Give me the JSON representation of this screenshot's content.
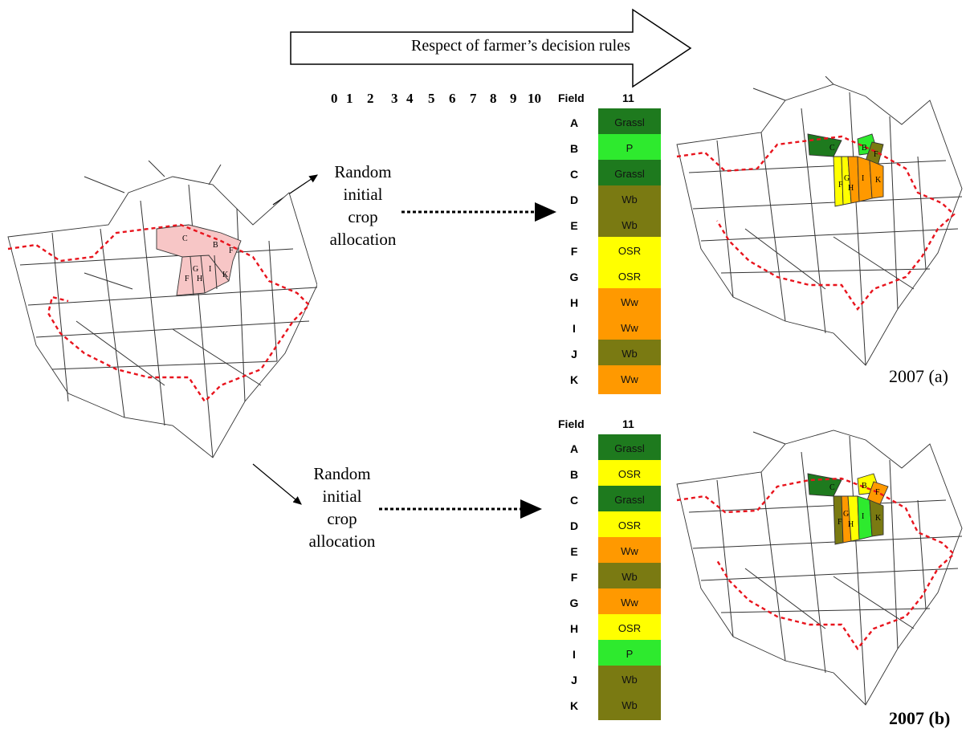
{
  "banner": {
    "label": "Respect of farmer’s decision rules"
  },
  "iteration_scale": [
    "0",
    "1",
    "2",
    "3",
    "4",
    "5",
    "6",
    "7",
    "8",
    "9",
    "10"
  ],
  "table_headers": {
    "field": "Field",
    "iteration": "11"
  },
  "random_label": {
    "line1": "Random",
    "line2": "initial",
    "line3": "crop",
    "line4": "allocation"
  },
  "scenario_a": {
    "year_label": "2007 (a)",
    "rows": [
      {
        "field": "A",
        "crop": "Grassl",
        "color": "#1e7a1e"
      },
      {
        "field": "B",
        "crop": "P",
        "color": "#2eea2e"
      },
      {
        "field": "C",
        "crop": "Grassl",
        "color": "#1e7a1e"
      },
      {
        "field": "D",
        "crop": "Wb",
        "color": "#7a7a12"
      },
      {
        "field": "E",
        "crop": "Wb",
        "color": "#7a7a12"
      },
      {
        "field": "F",
        "crop": "OSR",
        "color": "#ffff00"
      },
      {
        "field": "G",
        "crop": "OSR",
        "color": "#ffff00"
      },
      {
        "field": "H",
        "crop": "Ww",
        "color": "#ff9900"
      },
      {
        "field": "I",
        "crop": "Ww",
        "color": "#ff9900"
      },
      {
        "field": "J",
        "crop": "Wb",
        "color": "#7a7a12"
      },
      {
        "field": "K",
        "crop": "Ww",
        "color": "#ff9900"
      }
    ]
  },
  "scenario_b": {
    "year_label": "2007 (b)",
    "rows": [
      {
        "field": "A",
        "crop": "Grassl",
        "color": "#1e7a1e"
      },
      {
        "field": "B",
        "crop": "OSR",
        "color": "#ffff00"
      },
      {
        "field": "C",
        "crop": "Grassl",
        "color": "#1e7a1e"
      },
      {
        "field": "D",
        "crop": "OSR",
        "color": "#ffff00"
      },
      {
        "field": "E",
        "crop": "Ww",
        "color": "#ff9900"
      },
      {
        "field": "F",
        "crop": "Wb",
        "color": "#7a7a12"
      },
      {
        "field": "G",
        "crop": "Ww",
        "color": "#ff9900"
      },
      {
        "field": "H",
        "crop": "OSR",
        "color": "#ffff00"
      },
      {
        "field": "I",
        "crop": "P",
        "color": "#2eea2e"
      },
      {
        "field": "J",
        "crop": "Wb",
        "color": "#7a7a12"
      },
      {
        "field": "K",
        "crop": "Wb",
        "color": "#7a7a12"
      }
    ]
  },
  "map_field_labels": [
    "C",
    "B",
    "F",
    "G",
    "H",
    "I",
    "K",
    "F"
  ],
  "colors": {
    "initial_highlight": "#f7c6c6",
    "border": "#e8141d"
  }
}
